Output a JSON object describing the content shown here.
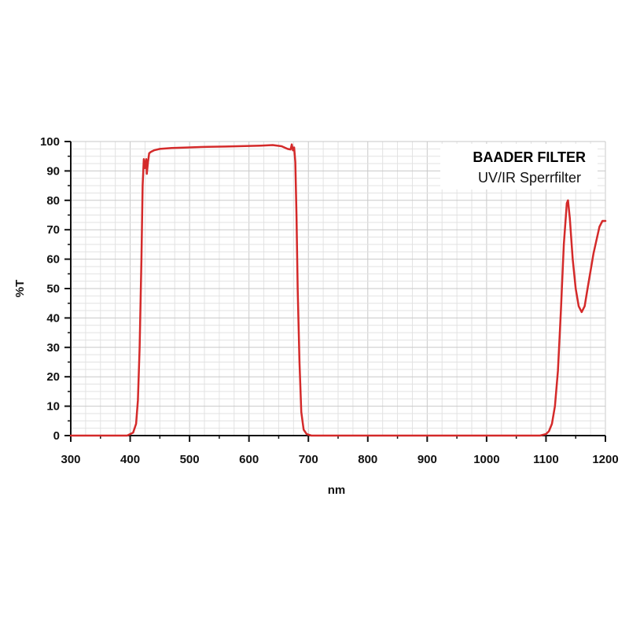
{
  "chart_data": {
    "type": "line",
    "xlabel": "nm",
    "ylabel": "%T",
    "xlim": [
      300,
      1200
    ],
    "ylim": [
      0,
      100
    ],
    "x_ticks": [
      300,
      400,
      500,
      600,
      700,
      800,
      900,
      1000,
      1100,
      1200
    ],
    "y_ticks": [
      0,
      10,
      20,
      30,
      40,
      50,
      60,
      70,
      80,
      90,
      100
    ],
    "grid": true,
    "legend_position": "top-right",
    "legend_text": {
      "title": "BAADER FILTER",
      "subtitle": "UV/IR Sperrfilter"
    },
    "series": [
      {
        "color": "#d42a2a",
        "x": [
          300,
          395,
          405,
          410,
          413,
          416,
          419,
          421,
          423,
          425,
          427,
          428,
          430,
          432,
          435,
          440,
          450,
          470,
          500,
          530,
          560,
          600,
          620,
          640,
          655,
          665,
          670,
          672,
          674,
          676,
          678,
          680,
          682,
          685,
          688,
          692,
          697,
          705,
          1090,
          1100,
          1105,
          1110,
          1115,
          1120,
          1125,
          1130,
          1135,
          1137,
          1140,
          1145,
          1150,
          1155,
          1160,
          1165,
          1170,
          1180,
          1190,
          1195,
          1200
        ],
        "y": [
          0,
          0,
          1,
          4,
          12,
          30,
          60,
          85,
          94,
          91,
          94,
          89,
          93,
          96,
          96.5,
          97,
          97.5,
          97.8,
          98,
          98.2,
          98.3,
          98.5,
          98.6,
          98.8,
          98.4,
          97.5,
          97.3,
          99,
          97,
          98,
          93,
          75,
          50,
          25,
          8,
          2,
          0.5,
          0,
          0,
          0.5,
          1.5,
          4,
          10,
          22,
          42,
          65,
          79,
          80,
          74,
          60,
          50,
          44,
          42,
          44,
          50,
          62,
          71,
          73,
          73
        ]
      }
    ]
  }
}
